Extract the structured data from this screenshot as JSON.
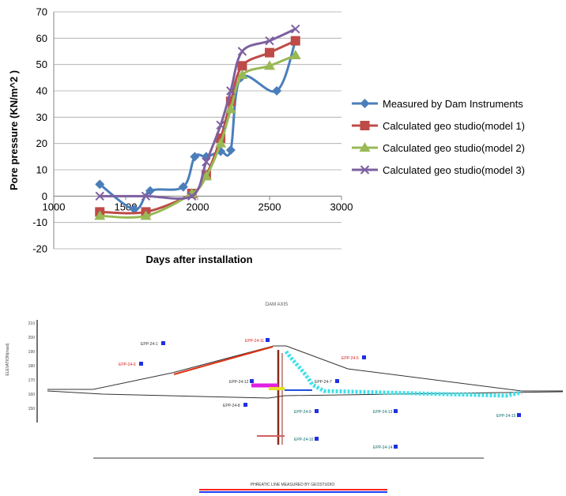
{
  "chart_data": {
    "type": "line",
    "xlabel": "Days after installation",
    "ylabel": "Pore pressure (KN/m^2 )",
    "xlim": [
      1000,
      3000
    ],
    "ylim": [
      -20,
      70
    ],
    "xticks": [
      1000,
      1500,
      2000,
      2500,
      3000
    ],
    "yticks": [
      -20,
      -10,
      0,
      10,
      20,
      30,
      40,
      50,
      60,
      70
    ],
    "grid": "horizontal",
    "legend_position": "right",
    "series": [
      {
        "name": "Measured by Dam Instruments",
        "color": "#4a7ebb",
        "marker": "diamond",
        "x": [
          1320,
          1560,
          1670,
          1900,
          1980,
          2060,
          2160,
          2230,
          2300,
          2550,
          2680
        ],
        "y": [
          4.5,
          -5,
          2,
          3.5,
          15,
          15,
          17,
          17.5,
          45,
          40,
          59
        ]
      },
      {
        "name": "Calculated geo studio(model 1)",
        "color": "#be4b48",
        "marker": "square",
        "x": [
          1320,
          1640,
          1960,
          2060,
          2160,
          2230,
          2310,
          2500,
          2680
        ],
        "y": [
          -6,
          -6,
          1,
          8,
          22,
          36,
          49.5,
          54.5,
          59
        ]
      },
      {
        "name": "Calculated geo studio(model 2)",
        "color": "#98b954",
        "marker": "triangle",
        "x": [
          1320,
          1640,
          1960,
          2060,
          2160,
          2230,
          2310,
          2500,
          2680
        ],
        "y": [
          -7.5,
          -7.5,
          1,
          7.5,
          20,
          33,
          46,
          49.5,
          53.5
        ]
      },
      {
        "name": "Calculated geo studio(model 3)",
        "color": "#7d60a0",
        "marker": "x",
        "x": [
          1320,
          1640,
          1960,
          2060,
          2160,
          2230,
          2310,
          2500,
          2680
        ],
        "y": [
          0,
          0,
          0,
          13,
          27,
          40,
          55,
          59,
          63.5
        ]
      }
    ]
  },
  "diagram": {
    "title": "DAM AXIS",
    "elevation_label": "ELEVATION(masl)",
    "elevation_ticks": [
      "210",
      "200",
      "190",
      "180",
      "170",
      "160",
      "150"
    ],
    "instrument_labels": [
      "EPP-24-1",
      "EPP-24-11",
      "EPP-24-5",
      "EPP-24-6",
      "EPP-24-12",
      "EPP-24-7",
      "EPP-24-8",
      "EPP-24-9",
      "EPP-24-13",
      "EPP-24-10",
      "EPP-24-14",
      "EPP-24-15"
    ],
    "legend_text": "PHREATIC LINE MEASURED BY GEOSTUDIO"
  }
}
